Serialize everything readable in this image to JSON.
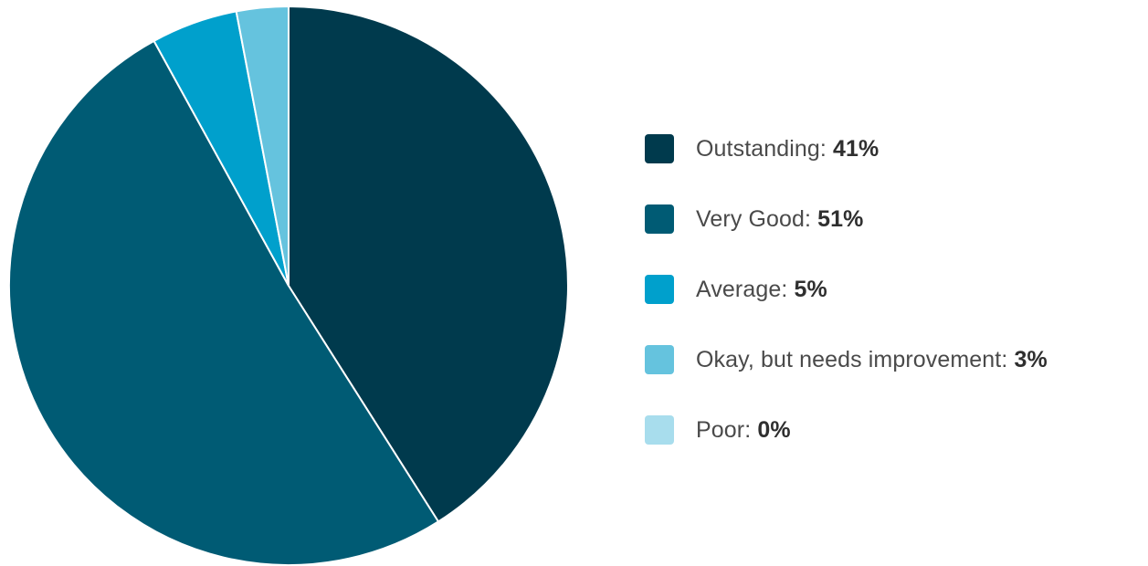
{
  "chart_data": {
    "type": "pie",
    "start_angle": "12 o'clock",
    "direction": "clockwise",
    "slices": [
      {
        "label": "Outstanding",
        "value": 41,
        "value_text": "41%",
        "color": "#003a4d"
      },
      {
        "label": "Very Good",
        "value": 51,
        "value_text": "51%",
        "color": "#005b74"
      },
      {
        "label": "Average",
        "value": 5,
        "value_text": "5%",
        "color": "#00a0cc"
      },
      {
        "label": "Okay, but needs improvement",
        "value": 3,
        "value_text": "3%",
        "color": "#65c3de"
      },
      {
        "label": "Poor",
        "value": 0,
        "value_text": "0%",
        "color": "#a8dded"
      }
    ],
    "legend_position": "right",
    "separator": ": "
  }
}
